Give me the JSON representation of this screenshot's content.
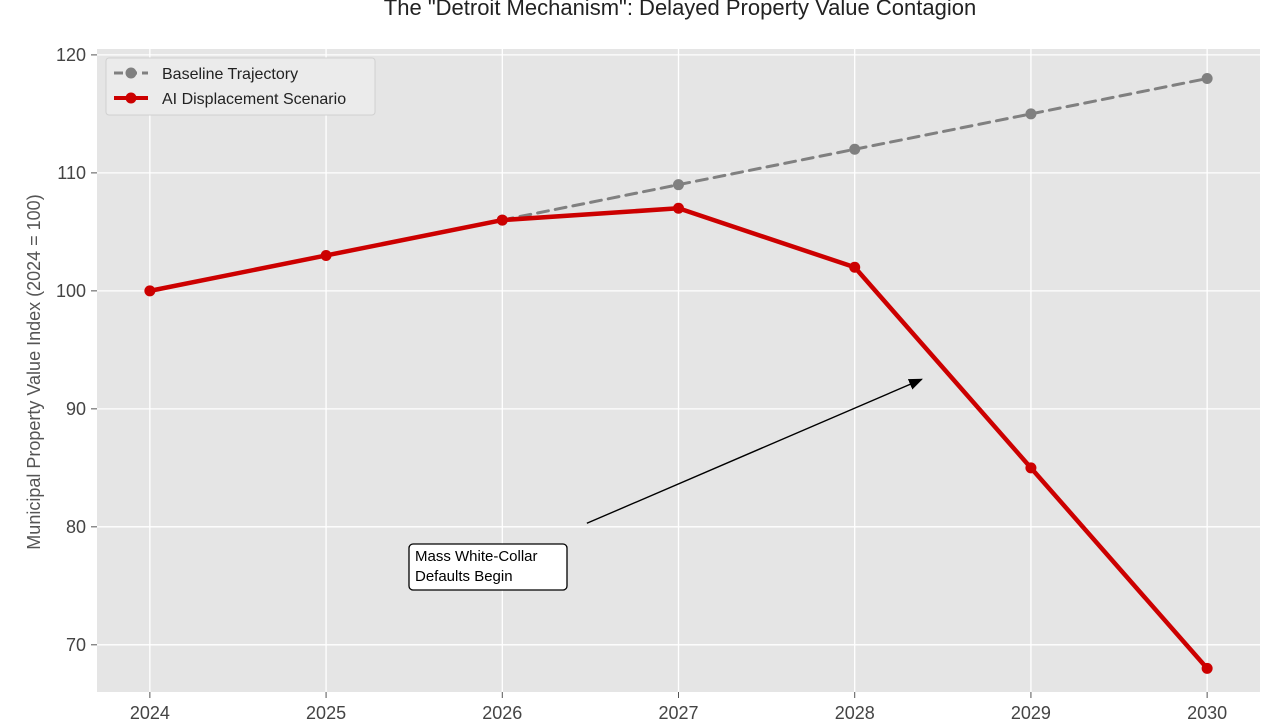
{
  "chart_data": {
    "type": "line",
    "title": "The \"Detroit Mechanism\": Delayed Property Value Contagion",
    "xlabel": "",
    "ylabel": "Municipal Property Value Index (2024 = 100)",
    "x": [
      2024,
      2025,
      2026,
      2027,
      2028,
      2029,
      2030
    ],
    "xlim": [
      2023.7,
      2030.3
    ],
    "ylim": [
      66,
      120.5
    ],
    "yticks": [
      70,
      80,
      90,
      100,
      110,
      120
    ],
    "grid": true,
    "legend_position": "top-left",
    "series": [
      {
        "name": "Baseline Trajectory",
        "color": "#808080",
        "style": "dashed",
        "x": [
          2026,
          2027,
          2028,
          2029,
          2030
        ],
        "values": [
          106,
          109,
          112,
          115,
          118
        ]
      },
      {
        "name": "AI Displacement Scenario",
        "color": "#cc0000",
        "style": "solid",
        "x": [
          2024,
          2025,
          2026,
          2027,
          2028,
          2029,
          2030
        ],
        "values": [
          100,
          103,
          106,
          107,
          102,
          85,
          68
        ]
      }
    ],
    "annotations": [
      {
        "lines": [
          "Mass White-Collar",
          "Defaults Begin"
        ],
        "text_anchor": {
          "x": 2025.5,
          "y": 76.5
        },
        "arrow_tip": {
          "x": 2028.38,
          "y": 92.5
        },
        "arrow_tail": {
          "x": 2026.48,
          "y": 80.3
        }
      }
    ]
  }
}
